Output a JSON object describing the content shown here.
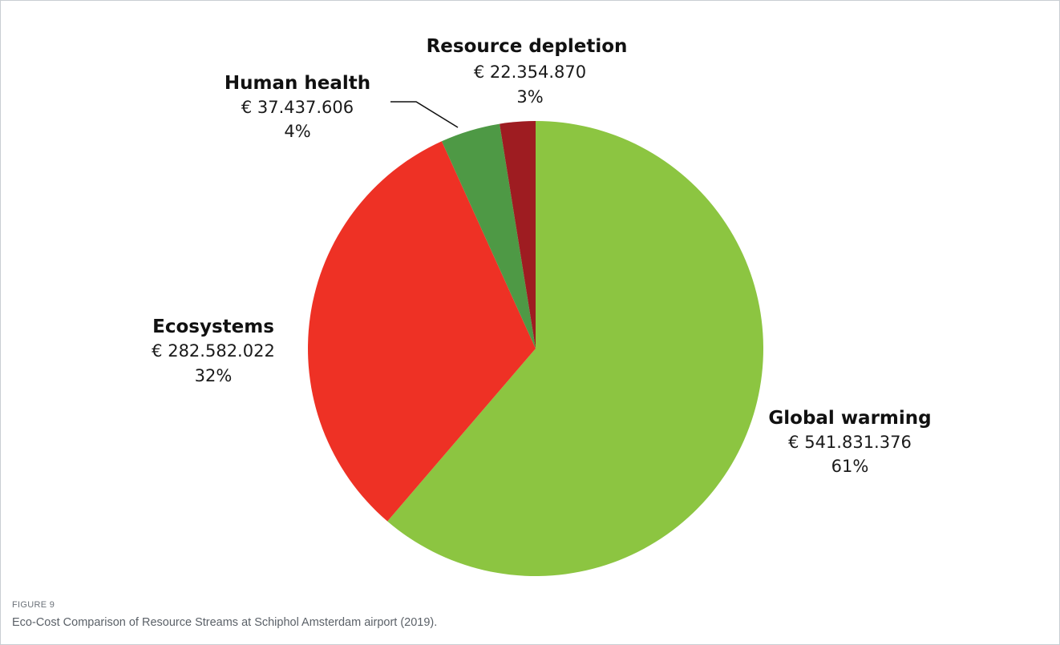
{
  "chart_data": {
    "type": "pie",
    "slices": [
      {
        "label": "Global warming",
        "value_text": "€ 541.831.376",
        "pct_text": "61%",
        "value": 541831376,
        "color": "#8cc541"
      },
      {
        "label": "Ecosystems",
        "value_text": "€ 282.582.022",
        "pct_text": "32%",
        "value": 282582022,
        "color": "#ee3125"
      },
      {
        "label": "Human health",
        "value_text": "€ 37.437.606",
        "pct_text": "4%",
        "value": 37437606,
        "color": "#4e9945"
      },
      {
        "label": "Resource depletion",
        "value_text": "€ 22.354.870",
        "pct_text": "3%",
        "value": 22354870,
        "color": "#9e1c21"
      }
    ],
    "start_angle": "12 o'clock",
    "direction": "clockwise"
  },
  "figure": {
    "label": "FIGURE 9",
    "caption": "Eco-Cost Comparison of Resource Streams at Schiphol Amsterdam airport (2019)."
  }
}
